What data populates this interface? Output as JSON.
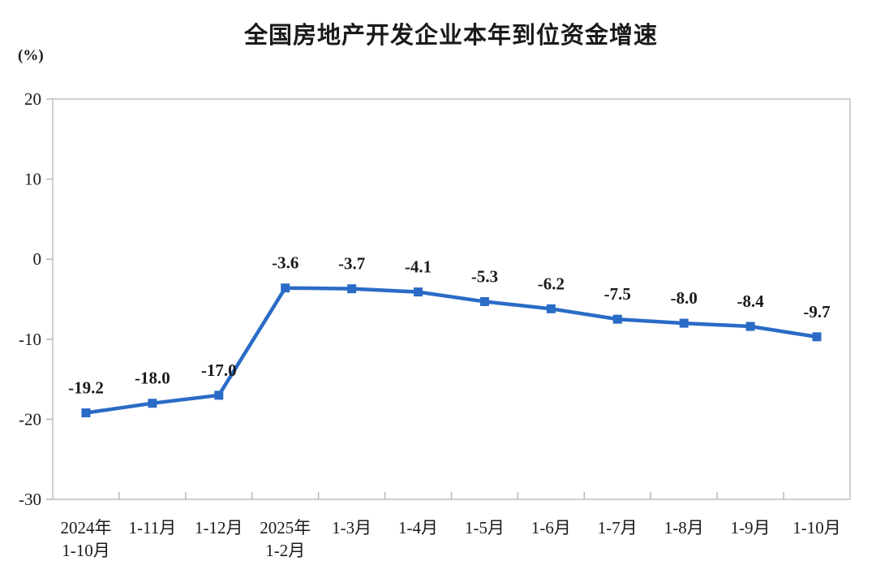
{
  "header": {
    "title": "全国房地产开发企业本年到位资金增速"
  },
  "chart_data": {
    "type": "line",
    "title": "全国房地产开发企业本年到位资金增速",
    "unit_label": "(%)",
    "categories": [
      "2024年\n1-10月",
      "1-11月",
      "1-12月",
      "2025年\n1-2月",
      "1-3月",
      "1-4月",
      "1-5月",
      "1-6月",
      "1-7月",
      "1-8月",
      "1-9月",
      "1-10月"
    ],
    "values": [
      -19.2,
      -18.0,
      -17.0,
      -3.6,
      -3.7,
      -4.1,
      -5.3,
      -6.2,
      -7.5,
      -8.0,
      -8.4,
      -9.7
    ],
    "data_labels": [
      "-19.2",
      "-18.0",
      "-17.0",
      "-3.6",
      "-3.7",
      "-4.1",
      "-5.3",
      "-6.2",
      "-7.5",
      "-8.0",
      "-8.4",
      "-9.7"
    ],
    "ylim": [
      -30,
      20
    ],
    "yticks": [
      20,
      10,
      0,
      -10,
      -20,
      -30
    ],
    "grid": false,
    "legend": "none",
    "marker": "square",
    "colors": {
      "line": "#2a6bc6",
      "marker": "#2a6bc6",
      "axis_border": "#cfcfcf",
      "tick": "#b8b8b8",
      "text": "#1a1a1a"
    }
  }
}
